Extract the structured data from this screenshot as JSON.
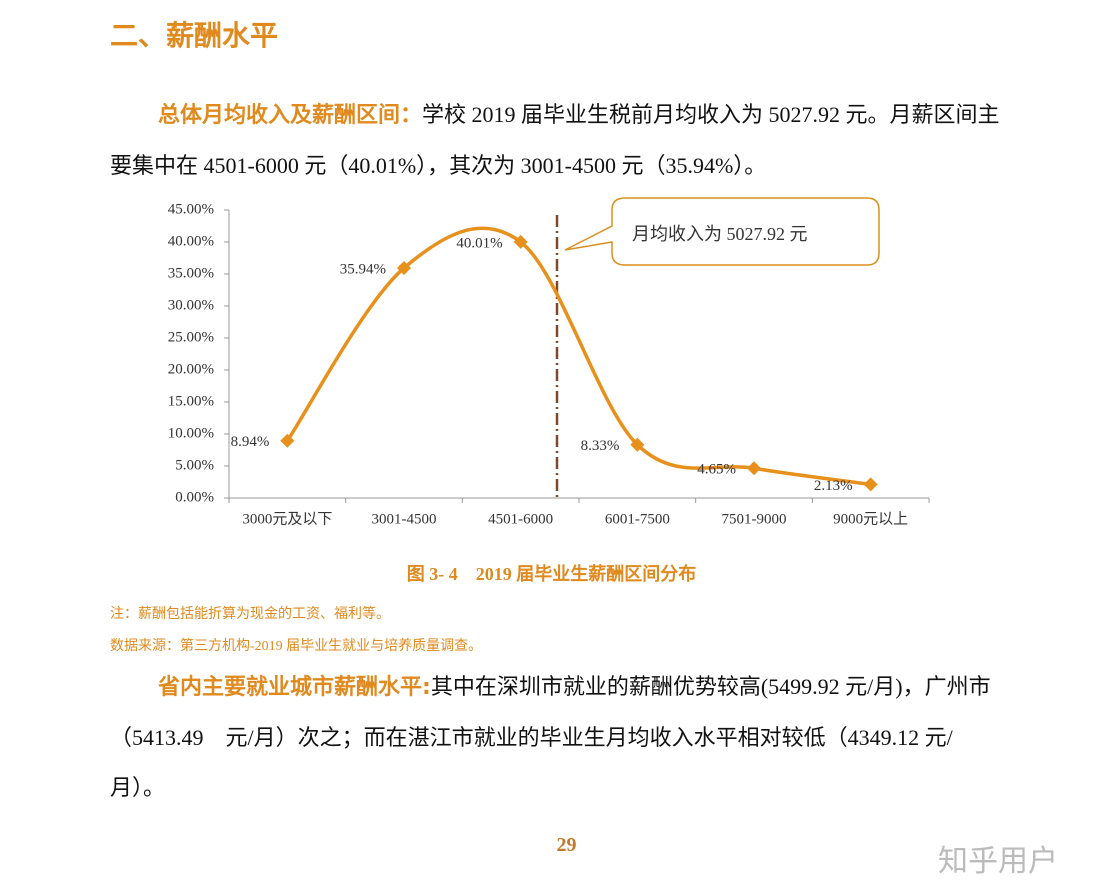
{
  "heading": "二、薪酬水平",
  "paragraphs": [
    {
      "lead": "总体月均收入及薪酬区间：",
      "text": "学校 2019 届毕业生税前月均收入为 5027.92 元。月薪区间主要集中在 4501-6000 元（40.01%），其次为 3001-4500 元（35.94%）。"
    },
    {
      "lead": "省内主要就业城市薪酬水平:",
      "text": "其中在深圳市就业的薪酬优势较高(5499.92 元/月)，广州市（5413.49　元/月）次之；而在湛江市就业的毕业生月均收入水平相对较低（4349.12 元/月）。"
    }
  ],
  "chart_data": {
    "type": "line",
    "categories": [
      "3000元及以下",
      "3001-4500",
      "4501-6000",
      "6001-7500",
      "7501-9000",
      "9000元以上"
    ],
    "values": [
      8.94,
      35.94,
      40.01,
      8.33,
      4.65,
      2.13
    ],
    "value_labels": [
      "8.94%",
      "35.94%",
      "40.01%",
      "8.33%",
      "4.65%",
      "2.13%"
    ],
    "color": "#e8901c",
    "ylim": [
      0,
      45
    ],
    "yticks": [
      {
        "value": 0,
        "label": "0.00%"
      },
      {
        "value": 5,
        "label": "5.00%"
      },
      {
        "value": 10,
        "label": "10.00%"
      },
      {
        "value": 15,
        "label": "15.00%"
      },
      {
        "value": 20,
        "label": "20.00%"
      },
      {
        "value": 25,
        "label": "25.00%"
      },
      {
        "value": 30,
        "label": "30.00%"
      },
      {
        "value": 35,
        "label": "35.00%"
      },
      {
        "value": 40,
        "label": "40.00%"
      },
      {
        "value": 45,
        "label": "45.00%"
      }
    ],
    "grid": false,
    "annotation": "月均收入为 5027.92 元"
  },
  "caption": "图 3- 4　2019 届毕业生薪酬区间分布",
  "notes": [
    "注：薪酬包括能折算为现金的工资、福利等。",
    "数据来源：第三方机构-2019 届毕业生就业与培养质量调查。"
  ],
  "page_number": "29",
  "watermark": "知乎用户"
}
